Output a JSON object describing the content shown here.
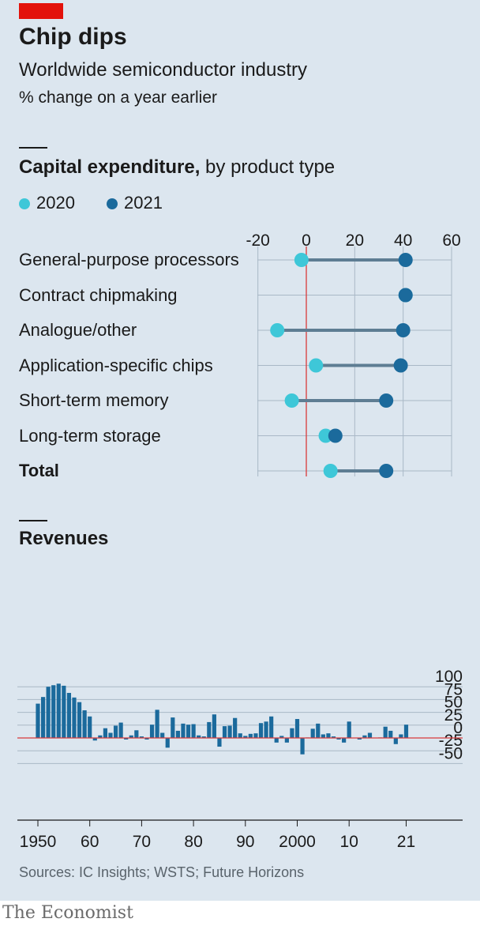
{
  "title": "Chip dips",
  "subtitle": "Worldwide semiconductor industry",
  "unit": "% change on a year earlier",
  "capex": {
    "heading_bold": "Capital expenditure,",
    "heading_rest": " by product type",
    "legend": [
      {
        "label": "2020",
        "color": "#3ec7d8"
      },
      {
        "label": "2021",
        "color": "#1b6a9c"
      }
    ],
    "x_ticks": [
      "-20",
      "0",
      "20",
      "40",
      "60"
    ],
    "total_label": "Total"
  },
  "revenues": {
    "heading": "Revenues",
    "y_ticks": [
      "100",
      "75",
      "50",
      "25",
      "0",
      "-25",
      "-50"
    ],
    "x_ticks": [
      "1950",
      "60",
      "70",
      "80",
      "90",
      "2000",
      "10",
      "21"
    ]
  },
  "source": "Sources: IC Insights; WSTS; Future Horizons",
  "logo": "The Economist",
  "chart_data": [
    {
      "type": "scatter",
      "title": "Capital expenditure, by product type",
      "categories": [
        "General-purpose processors",
        "Contract chipmaking",
        "Analogue/other",
        "Application-specific chips",
        "Short-term memory",
        "Long-term storage",
        "Total"
      ],
      "series": [
        {
          "name": "2020",
          "values": [
            -2,
            41,
            -12,
            4,
            -6,
            8,
            10
          ]
        },
        {
          "name": "2021",
          "values": [
            41,
            41,
            40,
            39,
            33,
            12,
            33
          ]
        }
      ],
      "xlim": [
        -20,
        60
      ],
      "grid": true
    },
    {
      "type": "bar",
      "title": "Revenues",
      "x": [
        1950,
        1951,
        1952,
        1953,
        1954,
        1955,
        1956,
        1957,
        1958,
        1959,
        1960,
        1961,
        1962,
        1963,
        1964,
        1965,
        1966,
        1967,
        1968,
        1969,
        1970,
        1971,
        1972,
        1973,
        1974,
        1975,
        1976,
        1977,
        1978,
        1979,
        1980,
        1981,
        1982,
        1983,
        1984,
        1985,
        1986,
        1987,
        1988,
        1989,
        1990,
        1991,
        1992,
        1993,
        1994,
        1995,
        1996,
        1997,
        1998,
        1999,
        2000,
        2001,
        2002,
        2003,
        2004,
        2005,
        2006,
        2007,
        2008,
        2009,
        2010,
        2011,
        2012,
        2013,
        2014,
        2015,
        2016,
        2017,
        2018,
        2019,
        2020,
        2021
      ],
      "values": [
        67,
        80,
        100,
        103,
        106,
        102,
        88,
        79,
        70,
        54,
        42,
        -5,
        5,
        19,
        10,
        24,
        30,
        -3,
        5,
        15,
        3,
        -3,
        26,
        55,
        10,
        -19,
        40,
        14,
        28,
        26,
        27,
        5,
        3,
        31,
        46,
        -17,
        23,
        24,
        39,
        9,
        4,
        8,
        9,
        29,
        32,
        42,
        -9,
        4,
        -9,
        19,
        37,
        -32,
        1,
        18,
        28,
        7,
        9,
        3,
        -3,
        -9,
        32,
        0.5,
        -3,
        5,
        10,
        0.5,
        1,
        22,
        14,
        -12,
        7,
        26
      ],
      "ylim": [
        -50,
        100
      ],
      "xlabel": "",
      "ylabel": "",
      "grid": true
    }
  ]
}
